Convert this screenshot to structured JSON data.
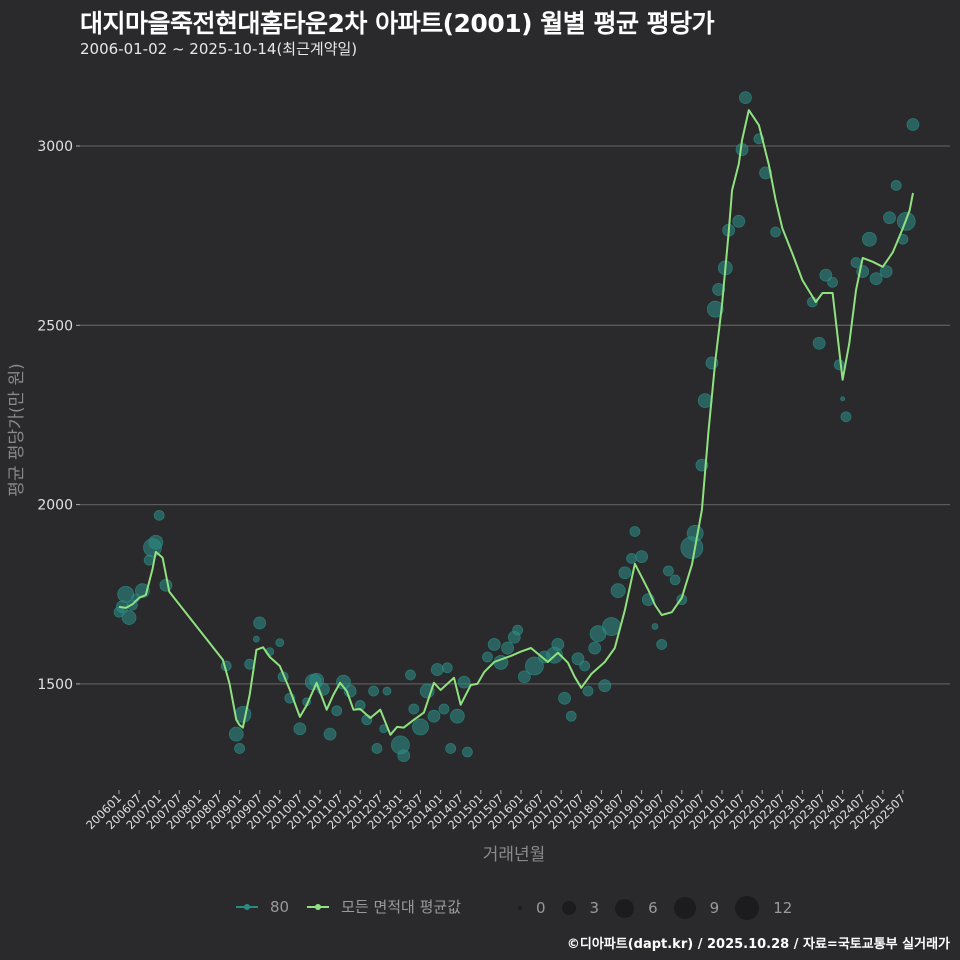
{
  "header": {
    "title": "대지마을죽전현대홈타운2차 아파트(2001) 월별 평균 평당가",
    "subtitle": "2006-01-02 ~ 2025-10-14(최근계약일)"
  },
  "legend": {
    "series": [
      {
        "label": "80",
        "color": "#2a8a86"
      },
      {
        "label": "모든 면적대 평균값",
        "color": "#8fe27f"
      }
    ],
    "sizes": [
      {
        "label": "0",
        "r": 2
      },
      {
        "label": "3",
        "r": 7
      },
      {
        "label": "6",
        "r": 9.5
      },
      {
        "label": "9",
        "r": 11
      },
      {
        "label": "12",
        "r": 12
      }
    ]
  },
  "caption": "©디아파트(dapt.kr) / 2025.10.28 / 자료=국토교통부 실거래가",
  "colors": {
    "background": "#2a292b",
    "grid": "#5a5a5a",
    "bubble": "#2b8f88",
    "line": "#8fe27f"
  },
  "chart_data": {
    "type": "line",
    "title": "대지마을죽전현대홈타운2차 아파트(2001) 월별 평균 평당가",
    "subtitle": "2006-01-02 ~ 2025-10-14(최근계약일)",
    "xlabel": "거래년월",
    "ylabel": "평균 평당가(만 원)",
    "ylim": [
      1200,
      3160
    ],
    "yticks": [
      1500,
      2000,
      2500,
      3000
    ],
    "grid": true,
    "legend_position": "bottom",
    "categories": [
      "200601",
      "200607",
      "200701",
      "200707",
      "200801",
      "200807",
      "200901",
      "200907",
      "201001",
      "201007",
      "201101",
      "201107",
      "201201",
      "201207",
      "201301",
      "201307",
      "201401",
      "201407",
      "201501",
      "201507",
      "201601",
      "201607",
      "201701",
      "201707",
      "201801",
      "201807",
      "201901",
      "201907",
      "202001",
      "202007",
      "202101",
      "202107",
      "202201",
      "202207",
      "202301",
      "202307",
      "202401",
      "202407",
      "202501",
      "202507"
    ],
    "series": [
      {
        "name": "모든 면적대 평균값",
        "type": "line",
        "points": [
          [
            "200601",
            1715
          ],
          [
            "200603",
            1712
          ],
          [
            "200605",
            1722
          ],
          [
            "200607",
            1740
          ],
          [
            "200609",
            1748
          ],
          [
            "200611",
            1820
          ],
          [
            "200612",
            1868
          ],
          [
            "200701",
            1860
          ],
          [
            "200702",
            1852
          ],
          [
            "200704",
            1757
          ],
          [
            "200808",
            1567
          ],
          [
            "200810",
            1500
          ],
          [
            "200812",
            1400
          ],
          [
            "200901",
            1385
          ],
          [
            "200902",
            1378
          ],
          [
            "200904",
            1470
          ],
          [
            "200906",
            1595
          ],
          [
            "200908",
            1602
          ],
          [
            "200910",
            1575
          ],
          [
            "201001",
            1550
          ],
          [
            "201004",
            1483
          ],
          [
            "201007",
            1408
          ],
          [
            "201009",
            1440
          ],
          [
            "201012",
            1503
          ],
          [
            "201103",
            1428
          ],
          [
            "201105",
            1470
          ],
          [
            "201107",
            1503
          ],
          [
            "201109",
            1480
          ],
          [
            "201111",
            1428
          ],
          [
            "201201",
            1430
          ],
          [
            "201204",
            1405
          ],
          [
            "201207",
            1428
          ],
          [
            "201210",
            1358
          ],
          [
            "201212",
            1380
          ],
          [
            "201302",
            1378
          ],
          [
            "201305",
            1400
          ],
          [
            "201308",
            1420
          ],
          [
            "201311",
            1503
          ],
          [
            "201401",
            1483
          ],
          [
            "201403",
            1500
          ],
          [
            "201405",
            1517
          ],
          [
            "201407",
            1442
          ],
          [
            "201410",
            1497
          ],
          [
            "201412",
            1500
          ],
          [
            "201502",
            1533
          ],
          [
            "201505",
            1561
          ],
          [
            "201507",
            1568
          ],
          [
            "201510",
            1578
          ],
          [
            "201601",
            1590
          ],
          [
            "201604",
            1600
          ],
          [
            "201609",
            1561
          ],
          [
            "201612",
            1587
          ],
          [
            "201703",
            1559
          ],
          [
            "201705",
            1520
          ],
          [
            "201707",
            1489
          ],
          [
            "201710",
            1528
          ],
          [
            "201802",
            1561
          ],
          [
            "201805",
            1600
          ],
          [
            "201808",
            1706
          ],
          [
            "201811",
            1835
          ],
          [
            "201903",
            1762
          ],
          [
            "201905",
            1720
          ],
          [
            "201907",
            1692
          ],
          [
            "201910",
            1700
          ],
          [
            "202001",
            1740
          ],
          [
            "202004",
            1832
          ],
          [
            "202007",
            1985
          ],
          [
            "202009",
            2208
          ],
          [
            "202011",
            2400
          ],
          [
            "202101",
            2557
          ],
          [
            "202103",
            2760
          ],
          [
            "202104",
            2877
          ],
          [
            "202106",
            2950
          ],
          [
            "202107",
            3017
          ],
          [
            "202109",
            3100
          ],
          [
            "202112",
            3058
          ],
          [
            "202203",
            2947
          ],
          [
            "202205",
            2850
          ],
          [
            "202207",
            2771
          ],
          [
            "202210",
            2700
          ],
          [
            "202301",
            2626
          ],
          [
            "202305",
            2565
          ],
          [
            "202307",
            2590
          ],
          [
            "202310",
            2590
          ],
          [
            "202401",
            2348
          ],
          [
            "202403",
            2450
          ],
          [
            "202405",
            2598
          ],
          [
            "202407",
            2688
          ],
          [
            "202410",
            2677
          ],
          [
            "202501",
            2663
          ],
          [
            "202503",
            2690
          ],
          [
            "202504",
            2704
          ],
          [
            "202507",
            2771
          ],
          [
            "202509",
            2820
          ],
          [
            "202510",
            2869
          ]
        ]
      },
      {
        "name": "80",
        "type": "scatter",
        "points": [
          [
            "200601",
            1700,
            5
          ],
          [
            "200602",
            1715,
            6
          ],
          [
            "200603",
            1750,
            8
          ],
          [
            "200604",
            1685,
            7
          ],
          [
            "200605",
            1720,
            5
          ],
          [
            "200606",
            1740,
            4
          ],
          [
            "200608",
            1760,
            7
          ],
          [
            "200610",
            1845,
            5
          ],
          [
            "200611",
            1880,
            9
          ],
          [
            "200612",
            1895,
            7
          ],
          [
            "200701",
            1970,
            5
          ],
          [
            "200703",
            1775,
            6
          ],
          [
            "200809",
            1550,
            5
          ],
          [
            "200812",
            1360,
            7
          ],
          [
            "200901",
            1320,
            5
          ],
          [
            "200902",
            1415,
            8
          ],
          [
            "200904",
            1555,
            5
          ],
          [
            "200906",
            1625,
            3
          ],
          [
            "200907",
            1670,
            6
          ],
          [
            "200910",
            1590,
            4
          ],
          [
            "201001",
            1615,
            4
          ],
          [
            "201002",
            1520,
            5
          ],
          [
            "201004",
            1460,
            5
          ],
          [
            "201007",
            1375,
            6
          ],
          [
            "201009",
            1450,
            4
          ],
          [
            "201011",
            1505,
            8
          ],
          [
            "201012",
            1510,
            7
          ],
          [
            "201102",
            1485,
            6
          ],
          [
            "201104",
            1360,
            6
          ],
          [
            "201106",
            1425,
            5
          ],
          [
            "201108",
            1505,
            7
          ],
          [
            "201110",
            1480,
            6
          ],
          [
            "201201",
            1440,
            5
          ],
          [
            "201203",
            1400,
            5
          ],
          [
            "201205",
            1480,
            5
          ],
          [
            "201206",
            1320,
            5
          ],
          [
            "201208",
            1375,
            4
          ],
          [
            "201209",
            1480,
            4
          ],
          [
            "201301",
            1330,
            9
          ],
          [
            "201302",
            1300,
            6
          ],
          [
            "201304",
            1525,
            5
          ],
          [
            "201305",
            1430,
            5
          ],
          [
            "201307",
            1380,
            8
          ],
          [
            "201309",
            1480,
            7
          ],
          [
            "201311",
            1410,
            6
          ],
          [
            "201312",
            1540,
            6
          ],
          [
            "201402",
            1430,
            5
          ],
          [
            "201403",
            1545,
            5
          ],
          [
            "201404",
            1320,
            5
          ],
          [
            "201406",
            1410,
            7
          ],
          [
            "201408",
            1505,
            6
          ],
          [
            "201409",
            1310,
            5
          ],
          [
            "201503",
            1575,
            5
          ],
          [
            "201505",
            1610,
            6
          ],
          [
            "201507",
            1560,
            7
          ],
          [
            "201509",
            1600,
            6
          ],
          [
            "201511",
            1630,
            6
          ],
          [
            "201512",
            1650,
            5
          ],
          [
            "201602",
            1520,
            6
          ],
          [
            "201605",
            1550,
            9
          ],
          [
            "201608",
            1575,
            6
          ],
          [
            "201611",
            1580,
            8
          ],
          [
            "201612",
            1610,
            6
          ],
          [
            "201702",
            1460,
            6
          ],
          [
            "201704",
            1410,
            5
          ],
          [
            "201706",
            1570,
            6
          ],
          [
            "201708",
            1550,
            5
          ],
          [
            "201709",
            1480,
            5
          ],
          [
            "201711",
            1600,
            6
          ],
          [
            "201712",
            1640,
            8
          ],
          [
            "201802",
            1495,
            6
          ],
          [
            "201804",
            1660,
            9
          ],
          [
            "201806",
            1760,
            7
          ],
          [
            "201808",
            1810,
            6
          ],
          [
            "201810",
            1850,
            5
          ],
          [
            "201811",
            1925,
            5
          ],
          [
            "201901",
            1855,
            6
          ],
          [
            "201903",
            1735,
            6
          ],
          [
            "201905",
            1660,
            3
          ],
          [
            "201907",
            1610,
            5
          ],
          [
            "201909",
            1815,
            5
          ],
          [
            "201911",
            1790,
            5
          ],
          [
            "202001",
            1735,
            5
          ],
          [
            "202004",
            1880,
            11
          ],
          [
            "202005",
            1920,
            8
          ],
          [
            "202007",
            2110,
            6
          ],
          [
            "202008",
            2290,
            7
          ],
          [
            "202010",
            2395,
            6
          ],
          [
            "202011",
            2545,
            8
          ],
          [
            "202012",
            2600,
            6
          ],
          [
            "202102",
            2660,
            7
          ],
          [
            "202103",
            2765,
            6
          ],
          [
            "202106",
            2790,
            6
          ],
          [
            "202107",
            2990,
            6
          ],
          [
            "202108",
            3135,
            6
          ],
          [
            "202112",
            3020,
            5
          ],
          [
            "202202",
            2925,
            6
          ],
          [
            "202205",
            2760,
            5
          ],
          [
            "202304",
            2565,
            5
          ],
          [
            "202306",
            2450,
            6
          ],
          [
            "202308",
            2640,
            6
          ],
          [
            "202310",
            2620,
            5
          ],
          [
            "202312",
            2390,
            5
          ],
          [
            "202401",
            2295,
            2
          ],
          [
            "202402",
            2245,
            5
          ],
          [
            "202405",
            2675,
            5
          ],
          [
            "202407",
            2650,
            6
          ],
          [
            "202409",
            2740,
            7
          ],
          [
            "202411",
            2630,
            6
          ],
          [
            "202502",
            2650,
            6
          ],
          [
            "202503",
            2800,
            6
          ],
          [
            "202505",
            2890,
            5
          ],
          [
            "202507",
            2740,
            5
          ],
          [
            "202508",
            2790,
            9
          ],
          [
            "202510",
            3060,
            6
          ]
        ]
      }
    ]
  }
}
